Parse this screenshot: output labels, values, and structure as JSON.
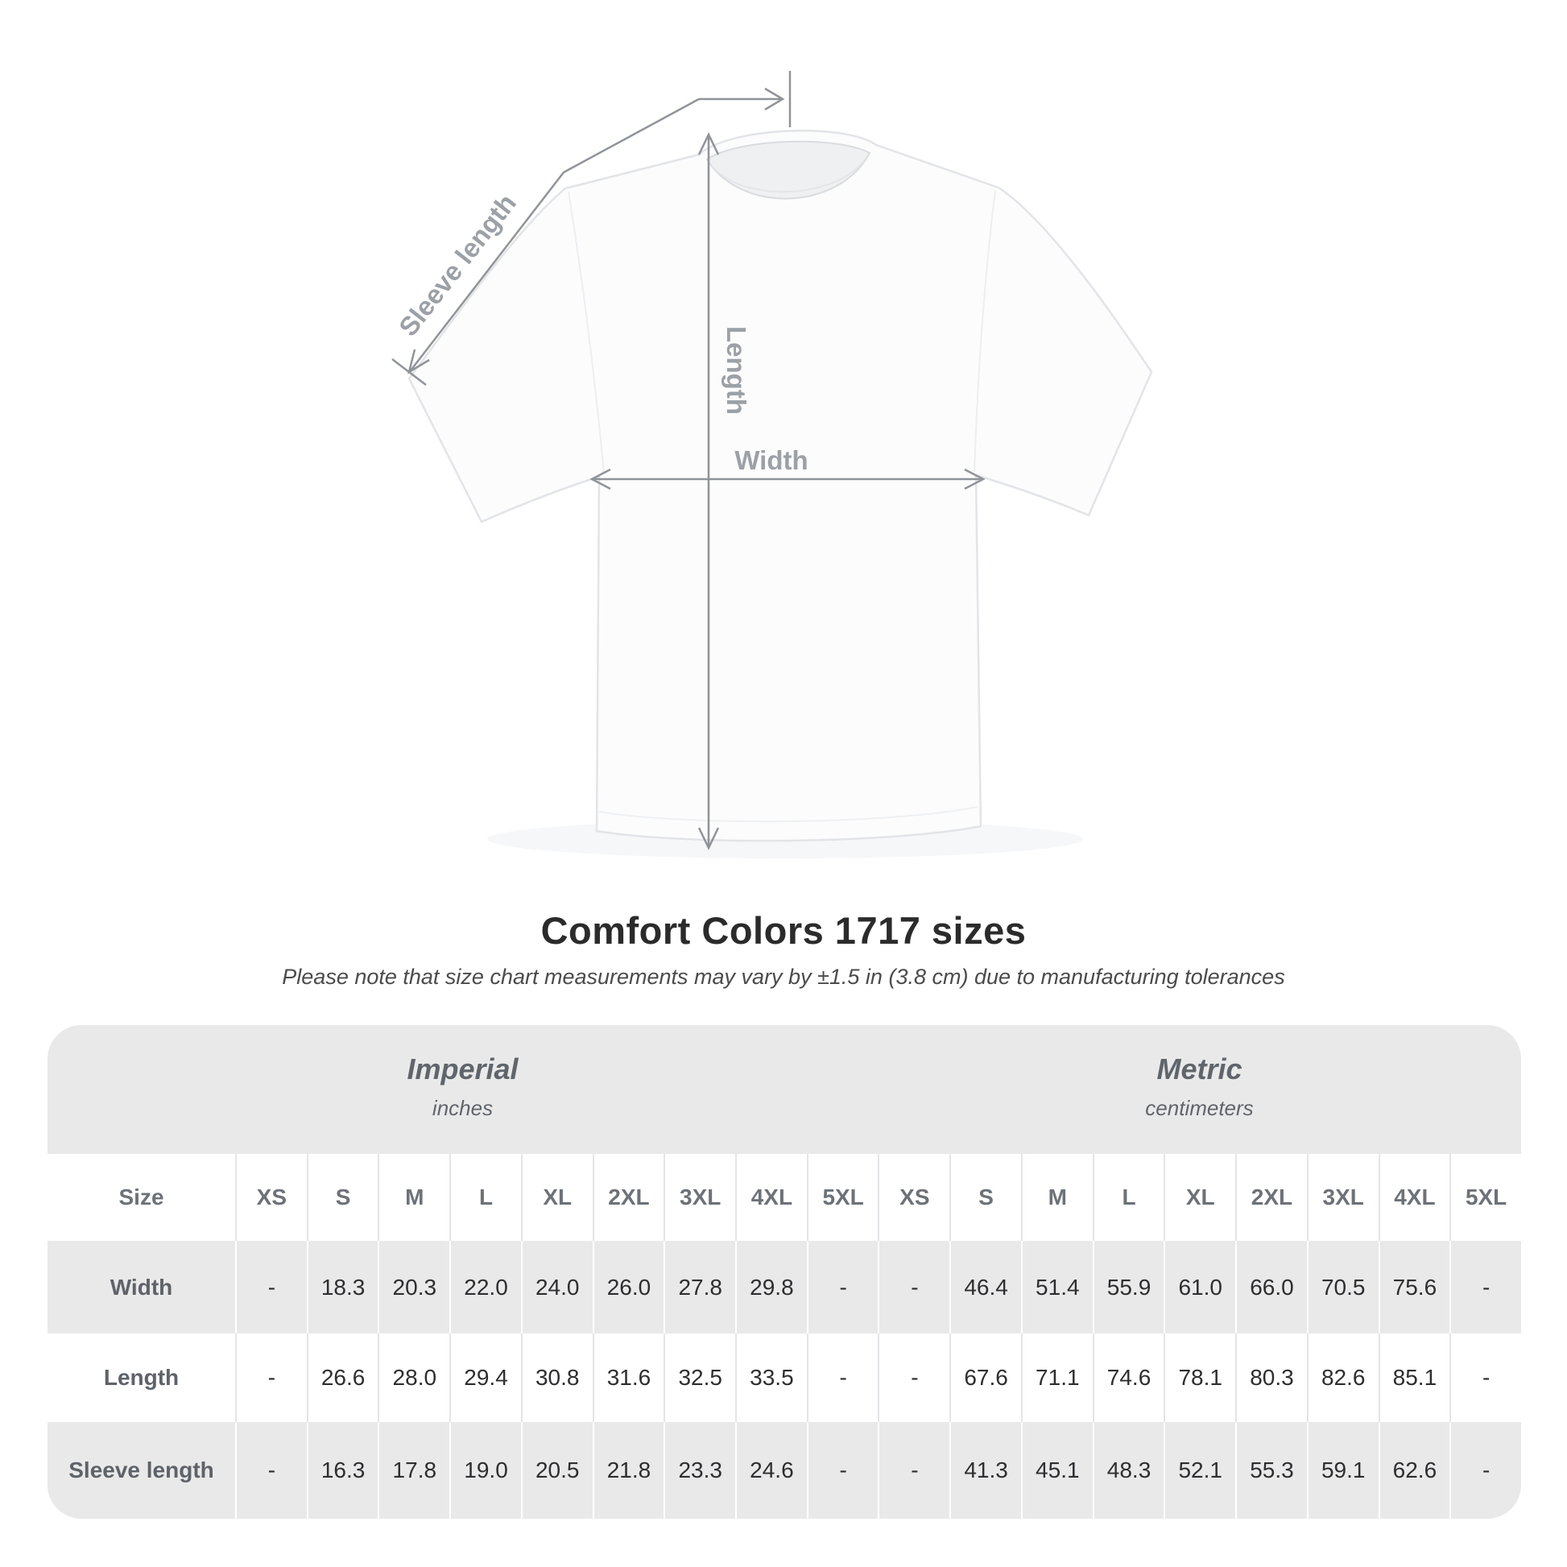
{
  "diagram": {
    "labels": {
      "sleeve_length": "Sleeve length",
      "length": "Length",
      "width": "Width"
    }
  },
  "heading": {
    "subtitle": "Please note that size chart measurements may vary by ±1.5 in (3.8 cm) due to manufacturing tolerances"
  },
  "chart_data": {
    "type": "table",
    "title": "Comfort Colors 1717 sizes",
    "size_column_label": "Size",
    "unit_groups": [
      {
        "name": "Imperial",
        "unit": "inches"
      },
      {
        "name": "Metric",
        "unit": "centimeters"
      }
    ],
    "sizes": [
      "XS",
      "S",
      "M",
      "L",
      "XL",
      "2XL",
      "3XL",
      "4XL",
      "5XL"
    ],
    "rows": [
      {
        "label": "Width",
        "imperial": [
          "-",
          "18.3",
          "20.3",
          "22.0",
          "24.0",
          "26.0",
          "27.8",
          "29.8",
          "-"
        ],
        "metric": [
          "-",
          "46.4",
          "51.4",
          "55.9",
          "61.0",
          "66.0",
          "70.5",
          "75.6",
          "-"
        ]
      },
      {
        "label": "Length",
        "imperial": [
          "-",
          "26.6",
          "28.0",
          "29.4",
          "30.8",
          "31.6",
          "32.5",
          "33.5",
          "-"
        ],
        "metric": [
          "-",
          "67.6",
          "71.1",
          "74.6",
          "78.1",
          "80.3",
          "82.6",
          "85.1",
          "-"
        ]
      },
      {
        "label": "Sleeve length",
        "imperial": [
          "-",
          "16.3",
          "17.8",
          "19.0",
          "20.5",
          "21.8",
          "23.3",
          "24.6",
          "-"
        ],
        "metric": [
          "-",
          "41.3",
          "45.1",
          "48.3",
          "52.1",
          "55.3",
          "59.1",
          "62.6",
          "-"
        ]
      }
    ]
  },
  "colors": {
    "table_background": "#e9e9ea",
    "row_white": "#ffffff",
    "annotation_line": "#8f9499",
    "annotation_label": "#9ba1a6",
    "title_text": "#2b2b2b",
    "value_text": "#2e2e30",
    "header_text": "#6c7278"
  }
}
